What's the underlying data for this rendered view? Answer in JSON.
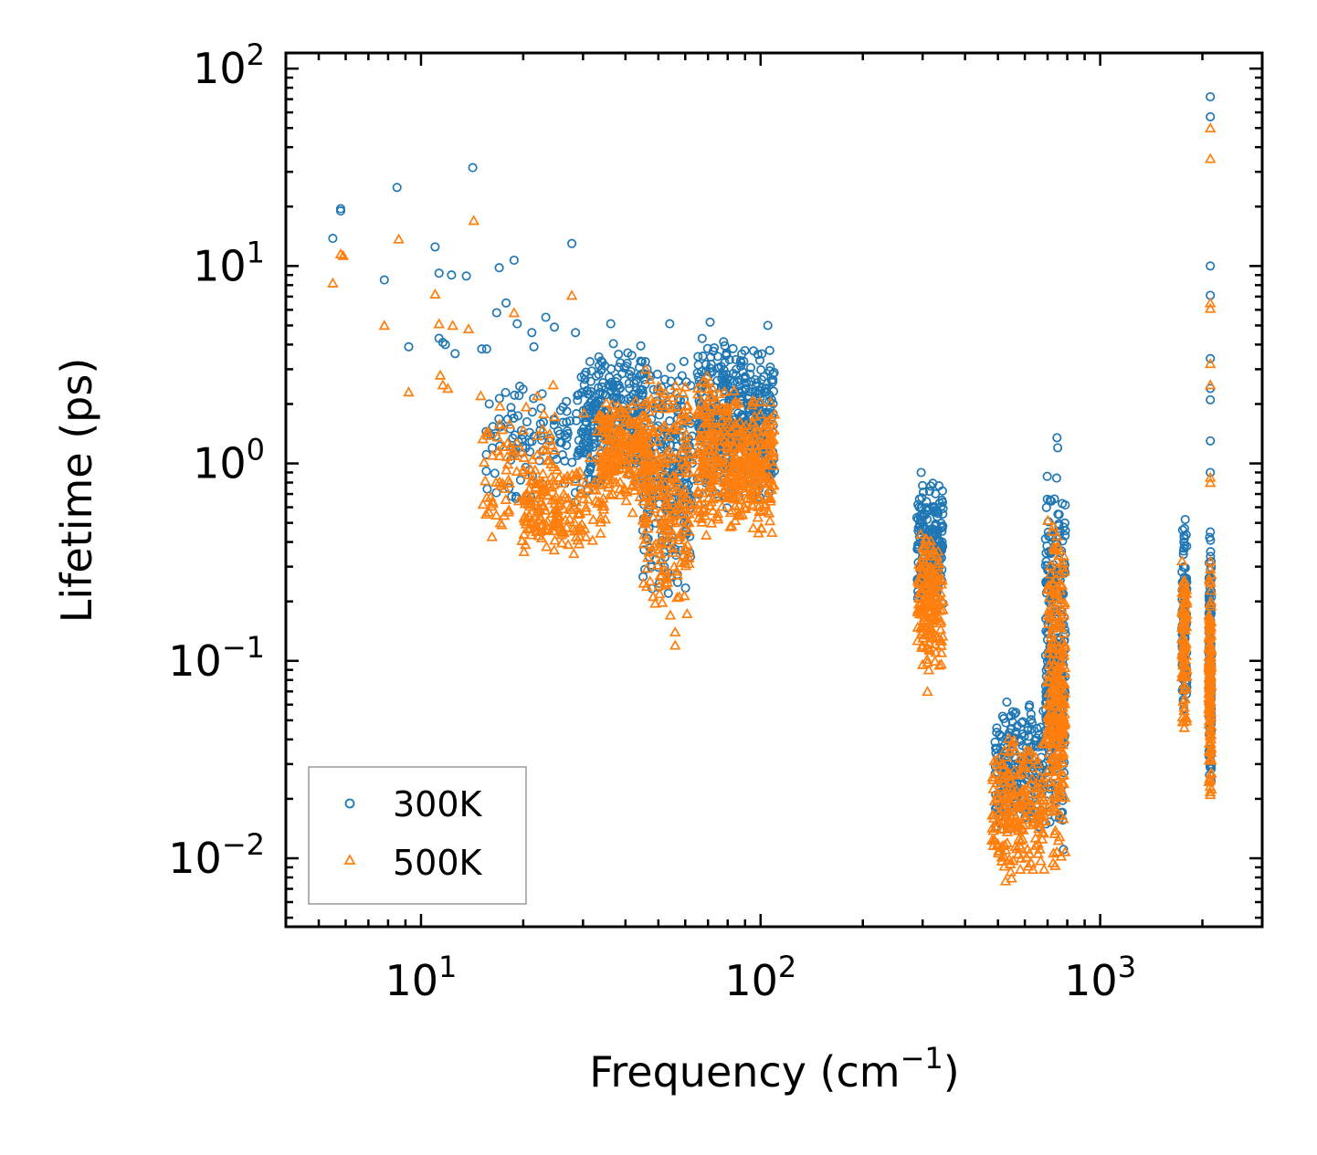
{
  "chart_data": {
    "type": "scatter",
    "title": "",
    "xlabel": "Frequency (cm",
    "xlabel_exp": "−1",
    "xlabel_suffix": ")",
    "ylabel": "Lifetime (ps)",
    "xscale": "log",
    "yscale": "log",
    "xlim": [
      4,
      3000
    ],
    "ylim": [
      0.0045,
      120
    ],
    "x_ticks": [
      {
        "base": "10",
        "exp": "1",
        "value": 10
      },
      {
        "base": "10",
        "exp": "2",
        "value": 100
      },
      {
        "base": "10",
        "exp": "3",
        "value": 1000
      }
    ],
    "y_ticks": [
      {
        "base": "10",
        "exp": "2",
        "value": 100
      },
      {
        "base": "10",
        "exp": "1",
        "value": 10
      },
      {
        "base": "10",
        "exp": "0",
        "value": 1
      },
      {
        "base": "10",
        "exp": "−1",
        "value": 0.1
      },
      {
        "base": "10",
        "exp": "−2",
        "value": 0.01
      }
    ],
    "legend_position": "lower-left",
    "colors": {
      "s300": "#1f77b4",
      "s500": "#ff7f0e",
      "axis": "#000000",
      "legend_border": "#999999"
    },
    "series": [
      {
        "name": "300K",
        "marker": "circle",
        "explicit_points": [
          [
            5.5,
            13.8
          ],
          [
            5.8,
            19.5
          ],
          [
            5.8,
            19.0
          ],
          [
            7.8,
            8.5
          ],
          [
            8.5,
            25.0
          ],
          [
            9.2,
            3.9
          ],
          [
            11.0,
            12.5
          ],
          [
            11.3,
            9.2
          ],
          [
            11.3,
            4.3
          ],
          [
            11.6,
            4.1
          ],
          [
            11.8,
            4.0
          ],
          [
            12.3,
            9.0
          ],
          [
            12.6,
            3.6
          ],
          [
            13.6,
            8.9
          ],
          [
            14.2,
            31.5
          ],
          [
            15.1,
            3.8
          ],
          [
            15.6,
            3.8
          ],
          [
            16.7,
            5.8
          ],
          [
            17.0,
            9.8
          ],
          [
            17.8,
            6.5
          ],
          [
            18.8,
            10.7
          ],
          [
            19.2,
            5.1
          ],
          [
            21.2,
            4.6
          ],
          [
            21.5,
            3.9
          ],
          [
            23.3,
            5.5
          ],
          [
            24.7,
            4.9
          ],
          [
            27.8,
            13.0
          ],
          [
            28.5,
            4.6
          ],
          [
            36.2,
            5.1
          ],
          [
            54.0,
            5.1
          ],
          [
            71.0,
            5.2
          ],
          [
            105.0,
            5.0
          ],
          [
            297.0,
            0.9
          ],
          [
            746.0,
            1.35
          ],
          [
            750.0,
            1.2
          ],
          [
            1780.0,
            0.52
          ],
          [
            2110.0,
            72.0
          ],
          [
            2110.0,
            57.0
          ],
          [
            2110.0,
            10.0
          ],
          [
            2110.0,
            7.1
          ],
          [
            2110.0,
            3.4
          ],
          [
            2110.0,
            2.4
          ],
          [
            2110.0,
            2.1
          ],
          [
            2110.0,
            1.3
          ],
          [
            2110.0,
            0.9
          ],
          [
            2110.0,
            0.45
          ]
        ],
        "clusters": [
          {
            "x": [
              15.5,
              34
            ],
            "y": [
              0.55,
              3.3
            ],
            "n": 140
          },
          {
            "x": [
              30,
              46
            ],
            "y": [
              0.75,
              4.2
            ],
            "n": 260
          },
          {
            "x": [
              45,
              63
            ],
            "y": [
              0.2,
              3.8
            ],
            "n": 260
          },
          {
            "x": [
              65,
              84
            ],
            "y": [
              0.55,
              4.5
            ],
            "n": 230
          },
          {
            "x": [
              84,
              110
            ],
            "y": [
              0.6,
              4.2
            ],
            "n": 230
          },
          {
            "x": [
              288,
              345
            ],
            "y": [
              0.18,
              0.85
            ],
            "n": 200
          },
          {
            "x": [
              490,
              680
            ],
            "y": [
              0.012,
              0.07
            ],
            "n": 220
          },
          {
            "x": [
              690,
              790
            ],
            "y": [
              0.009,
              1.1
            ],
            "n": 280
          },
          {
            "x": [
              1740,
              1800
            ],
            "y": [
              0.05,
              0.52
            ],
            "n": 110
          },
          {
            "x": [
              2090,
              2125
            ],
            "y": [
              0.02,
              0.45
            ],
            "n": 160
          }
        ]
      },
      {
        "name": "500K",
        "marker": "triangle",
        "explicit_points": [
          [
            5.5,
            8.2
          ],
          [
            5.8,
            11.5
          ],
          [
            5.9,
            11.3
          ],
          [
            7.8,
            5.0
          ],
          [
            8.6,
            13.7
          ],
          [
            9.2,
            2.3
          ],
          [
            11.0,
            7.2
          ],
          [
            11.3,
            5.1
          ],
          [
            11.4,
            2.8
          ],
          [
            11.6,
            2.5
          ],
          [
            12.0,
            2.4
          ],
          [
            12.4,
            5.0
          ],
          [
            13.8,
            4.8
          ],
          [
            14.3,
            17.0
          ],
          [
            15.0,
            2.2
          ],
          [
            18.8,
            5.8
          ],
          [
            22.0,
            2.2
          ],
          [
            24.5,
            2.5
          ],
          [
            27.8,
            7.1
          ],
          [
            30.2,
            1.8
          ],
          [
            40.0,
            1.8
          ],
          [
            56.0,
            0.12
          ],
          [
            56.0,
            0.14
          ],
          [
            310.0,
            0.07
          ],
          [
            313.0,
            0.09
          ],
          [
            2110.0,
            50.0
          ],
          [
            2110.0,
            35.0
          ],
          [
            2110.0,
            6.5
          ],
          [
            2110.0,
            6.1
          ],
          [
            2110.0,
            3.2
          ],
          [
            2110.0,
            2.5
          ],
          [
            2110.0,
            0.85
          ],
          [
            2110.0,
            0.8
          ]
        ],
        "clusters": [
          {
            "x": [
              15,
              25
            ],
            "y": [
              0.35,
              2.3
            ],
            "n": 90
          },
          {
            "x": [
              20,
              35
            ],
            "y": [
              0.33,
              1.1
            ],
            "n": 170
          },
          {
            "x": [
              33,
              47
            ],
            "y": [
              0.55,
              2.3
            ],
            "n": 220
          },
          {
            "x": [
              45,
              62
            ],
            "y": [
              0.16,
              3.1
            ],
            "n": 240
          },
          {
            "x": [
              65,
              84
            ],
            "y": [
              0.38,
              3.0
            ],
            "n": 200
          },
          {
            "x": [
              84,
              110
            ],
            "y": [
              0.4,
              2.4
            ],
            "n": 200
          },
          {
            "x": [
              290,
              345
            ],
            "y": [
              0.08,
              0.5
            ],
            "n": 180
          },
          {
            "x": [
              480,
              690
            ],
            "y": [
              0.007,
              0.045
            ],
            "n": 220
          },
          {
            "x": [
              700,
              790
            ],
            "y": [
              0.008,
              0.7
            ],
            "n": 260
          },
          {
            "x": [
              1740,
              1800
            ],
            "y": [
              0.04,
              0.38
            ],
            "n": 90
          },
          {
            "x": [
              2090,
              2125
            ],
            "y": [
              0.019,
              0.34
            ],
            "n": 140
          }
        ]
      }
    ]
  }
}
